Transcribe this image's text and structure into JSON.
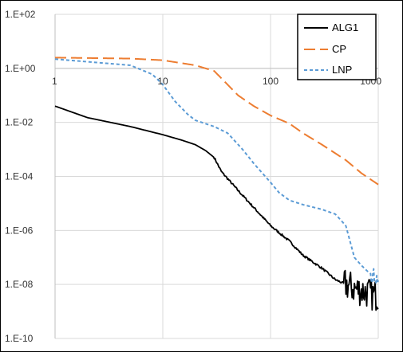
{
  "chart_data": {
    "type": "line",
    "title": "",
    "xlabel": "",
    "ylabel": "",
    "x_scale": "log",
    "y_scale": "log",
    "xlim": [
      1,
      1000
    ],
    "ylim": [
      1e-10,
      100
    ],
    "x_ticks": [
      {
        "value": 1,
        "label": "1"
      },
      {
        "value": 10,
        "label": "10"
      },
      {
        "value": 100,
        "label": "100"
      },
      {
        "value": 1000,
        "label": "1000"
      }
    ],
    "y_ticks": [
      {
        "value": 100,
        "label": "1.E+02"
      },
      {
        "value": 1,
        "label": "1.E+00"
      },
      {
        "value": 0.01,
        "label": "1.E-02"
      },
      {
        "value": 0.0001,
        "label": "1.E-04"
      },
      {
        "value": 1e-06,
        "label": "1.E-06"
      },
      {
        "value": 1e-08,
        "label": "1.E-08"
      },
      {
        "value": 1e-10,
        "label": "1.E-10"
      }
    ],
    "grid": true,
    "legend_position": "top-right",
    "series": [
      {
        "name": "ALG1",
        "color": "#000000",
        "dash": "solid",
        "points": [
          [
            1,
            0.04
          ],
          [
            2,
            0.015
          ],
          [
            5,
            0.007
          ],
          [
            10,
            0.0035
          ],
          [
            15,
            0.0022
          ],
          [
            20,
            0.0015
          ],
          [
            25,
            0.0009
          ],
          [
            30,
            0.0005
          ],
          [
            35,
            0.00015
          ],
          [
            50,
            3e-05
          ],
          [
            100,
            1.5e-06
          ],
          [
            150,
            4e-07
          ],
          [
            200,
            1.2e-07
          ],
          [
            300,
            4e-08
          ],
          [
            400,
            1.5e-08
          ],
          [
            500,
            1e-08
          ],
          [
            600,
            7e-09
          ],
          [
            700,
            6e-09
          ],
          [
            800,
            5e-09
          ],
          [
            900,
            4e-09
          ],
          [
            1000,
            4e-09
          ]
        ],
        "noise": [
          [
            480,
            1000,
            0.6
          ]
        ]
      },
      {
        "name": "CP",
        "color": "#ed7d31",
        "dash": "long-dash",
        "points": [
          [
            1,
            2.5
          ],
          [
            5,
            2.3
          ],
          [
            10,
            2.0
          ],
          [
            20,
            1.3
          ],
          [
            30,
            0.8
          ],
          [
            50,
            0.1
          ],
          [
            70,
            0.04
          ],
          [
            100,
            0.018
          ],
          [
            150,
            0.009
          ],
          [
            200,
            0.004
          ],
          [
            300,
            0.0015
          ],
          [
            500,
            0.0004
          ],
          [
            700,
            0.00013
          ],
          [
            1000,
            5e-05
          ]
        ],
        "noise": []
      },
      {
        "name": "LNP",
        "color": "#5b9bd5",
        "dash": "short-dash",
        "points": [
          [
            1,
            2.2
          ],
          [
            5,
            1.3
          ],
          [
            8,
            0.6
          ],
          [
            10,
            0.25
          ],
          [
            13,
            0.06
          ],
          [
            17,
            0.02
          ],
          [
            20,
            0.012
          ],
          [
            30,
            0.007
          ],
          [
            40,
            0.004
          ],
          [
            55,
            0.001
          ],
          [
            70,
            0.0003
          ],
          [
            100,
            6e-05
          ],
          [
            120,
            2.5e-05
          ],
          [
            150,
            1.3e-05
          ],
          [
            200,
            9e-06
          ],
          [
            300,
            6e-06
          ],
          [
            400,
            4e-06
          ],
          [
            500,
            1.5e-06
          ],
          [
            600,
            1e-07
          ],
          [
            700,
            5e-08
          ],
          [
            800,
            3e-08
          ],
          [
            1000,
            1.5e-08
          ]
        ],
        "noise": [
          [
            850,
            1000,
            0.3
          ]
        ]
      }
    ]
  }
}
